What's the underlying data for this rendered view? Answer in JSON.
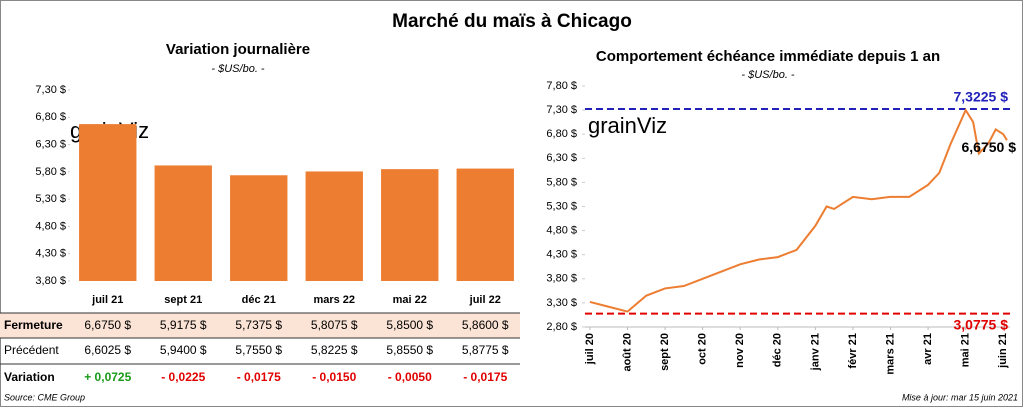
{
  "title": "Marché du maïs à Chicago",
  "source": "Source: CME Group",
  "updated": "Mise à jour: mar 15 juin 2021",
  "watermark": "grainViz",
  "chart_data": [
    {
      "type": "bar",
      "title": "Variation journalière",
      "subtitle": "- $US/bo. -",
      "categories": [
        "juil 21",
        "sept 21",
        "déc 21",
        "mars 22",
        "mai 22",
        "juil 22"
      ],
      "values": [
        6.675,
        5.9175,
        5.7375,
        5.8075,
        5.85,
        5.86
      ],
      "value_labels": [
        "6,6750 $",
        "5,9175 $",
        "5,7375 $",
        "5,8075 $",
        "5,8500 $",
        "5,8600 $"
      ],
      "color": "#ed7d31",
      "ylim": [
        3.8,
        7.3
      ],
      "yticks": [
        {
          "value": 3.8,
          "label": "3,80 $"
        },
        {
          "value": 4.3,
          "label": "4,30 $"
        },
        {
          "value": 4.8,
          "label": "4,80 $"
        },
        {
          "value": 5.3,
          "label": "5,30 $"
        },
        {
          "value": 5.8,
          "label": "5,80 $"
        },
        {
          "value": 6.3,
          "label": "6,30 $"
        },
        {
          "value": 6.8,
          "label": "6,80 $"
        },
        {
          "value": 7.3,
          "label": "7,30 $"
        }
      ]
    },
    {
      "type": "line",
      "title": "Comportement  échéance immédiate depuis 1 an",
      "subtitle": "- $US/bo. -",
      "x": [
        0,
        0.5,
        1,
        1.5,
        2,
        2.5,
        3,
        3.5,
        4,
        4.5,
        5,
        5.5,
        6,
        6.3,
        6.5,
        7,
        7.5,
        8,
        8.5,
        9,
        9.3,
        9.6,
        10,
        10.2,
        10.35,
        10.6,
        10.8,
        11,
        11.1
      ],
      "values": [
        3.32,
        3.22,
        3.12,
        3.45,
        3.6,
        3.65,
        3.8,
        3.95,
        4.1,
        4.2,
        4.25,
        4.4,
        4.9,
        5.3,
        5.25,
        5.5,
        5.45,
        5.5,
        5.5,
        5.75,
        6.0,
        6.6,
        7.3,
        7.05,
        6.4,
        6.6,
        6.9,
        6.8,
        6.675
      ],
      "color": "#ed7d31",
      "end_label": "6,6750 $",
      "reference_lines": [
        {
          "value": 7.3225,
          "label": "7,3225 $",
          "color": "#2222bb"
        },
        {
          "value": 3.0775,
          "label": "3,0775 $",
          "color": "#e00000"
        }
      ],
      "xlim": [
        -0.13,
        11.18
      ],
      "xticks": [
        {
          "value": 0,
          "label": "juil 20"
        },
        {
          "value": 1,
          "label": "août 20"
        },
        {
          "value": 2,
          "label": "sept 20"
        },
        {
          "value": 3,
          "label": "oct 20"
        },
        {
          "value": 4,
          "label": "nov 20"
        },
        {
          "value": 5,
          "label": "déc 20"
        },
        {
          "value": 6,
          "label": "janv 21"
        },
        {
          "value": 7,
          "label": "févr 21"
        },
        {
          "value": 8,
          "label": "mars 21"
        },
        {
          "value": 9,
          "label": "avr 21"
        },
        {
          "value": 10,
          "label": "mai 21"
        },
        {
          "value": 11,
          "label": "juin 21"
        }
      ],
      "ylim": [
        2.8,
        7.8
      ],
      "yticks": [
        {
          "value": 2.8,
          "label": "2,80 $"
        },
        {
          "value": 3.3,
          "label": "3,30 $"
        },
        {
          "value": 3.8,
          "label": "3,80 $"
        },
        {
          "value": 4.3,
          "label": "4,30 $"
        },
        {
          "value": 4.8,
          "label": "4,80 $"
        },
        {
          "value": 5.3,
          "label": "5,30 $"
        },
        {
          "value": 5.8,
          "label": "5,80 $"
        },
        {
          "value": 6.3,
          "label": "6,30 $"
        },
        {
          "value": 6.8,
          "label": "6,80 $"
        },
        {
          "value": 7.3,
          "label": "7,30 $"
        },
        {
          "value": 7.8,
          "label": "7,80 $"
        }
      ]
    }
  ],
  "table": {
    "close_label": "Fermeture",
    "rows": [
      {
        "label": "Précédent",
        "cells": [
          "6,6025 $",
          "5,9400 $",
          "5,7550 $",
          "5,8225 $",
          "5,8550 $",
          "5,8775 $"
        ]
      },
      {
        "label": "Variation",
        "cells": [
          "+ 0,0725",
          "- 0,0225",
          "- 0,0175",
          "- 0,0150",
          "- 0,0050",
          "- 0,0175"
        ],
        "colors": [
          "#1a9a1a",
          "#e00000",
          "#e00000",
          "#e00000",
          "#e00000",
          "#e00000"
        ]
      }
    ]
  }
}
